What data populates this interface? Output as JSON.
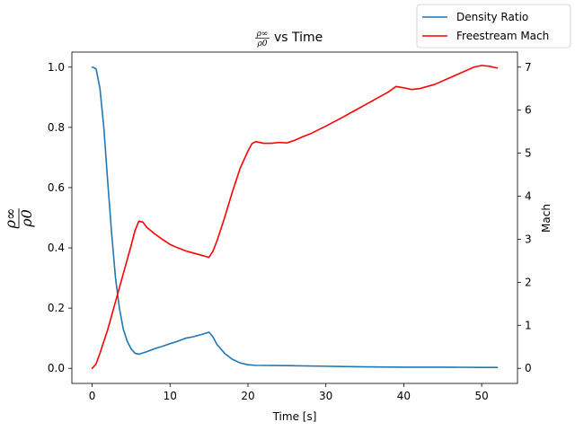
{
  "chart_data": {
    "type": "line",
    "title": "vs Time",
    "xlabel": "Time [s]",
    "ylabel_left": "",
    "ylabel_right": "Mach",
    "xlim": [
      -2.6,
      54.6
    ],
    "ylim_left": [
      -0.05,
      1.05
    ],
    "ylim_right": [
      -0.35,
      7.35
    ],
    "x_ticks": [
      0,
      10,
      20,
      30,
      40,
      50
    ],
    "y_left_ticks": [
      "0.0",
      "0.2",
      "0.4",
      "0.6",
      "0.8",
      "1.0"
    ],
    "y_right_ticks": [
      0,
      1,
      2,
      3,
      4,
      5,
      6,
      7
    ],
    "legend_position": "upper-right-outside",
    "series": [
      {
        "name": "Density Ratio",
        "axis": "left",
        "color": "#1f77b4",
        "x": [
          0,
          0.5,
          1,
          1.5,
          2,
          2.5,
          3,
          3.5,
          4,
          4.5,
          5,
          5.5,
          6,
          7,
          8,
          9,
          10,
          11,
          12,
          13,
          14,
          15,
          15.5,
          16,
          17,
          18,
          19,
          20,
          21,
          25,
          30,
          35,
          40,
          45,
          50,
          52
        ],
        "y": [
          1.0,
          0.995,
          0.93,
          0.8,
          0.62,
          0.45,
          0.3,
          0.2,
          0.13,
          0.09,
          0.065,
          0.05,
          0.047,
          0.055,
          0.065,
          0.073,
          0.082,
          0.09,
          0.1,
          0.105,
          0.112,
          0.12,
          0.105,
          0.08,
          0.05,
          0.03,
          0.018,
          0.012,
          0.01,
          0.009,
          0.007,
          0.005,
          0.004,
          0.004,
          0.003,
          0.003
        ]
      },
      {
        "name": "Freestream Mach",
        "axis": "right",
        "color": "#ff0000",
        "x": [
          0,
          0.5,
          1,
          2,
          3,
          4,
          5,
          5.5,
          6,
          6.5,
          7,
          8,
          9,
          10,
          11,
          12,
          13,
          14,
          15,
          15.5,
          16,
          17,
          18,
          19,
          20,
          20.5,
          21,
          22,
          23,
          24,
          25,
          25.5,
          26,
          27,
          28,
          30,
          32,
          34,
          36,
          37,
          38,
          39,
          40,
          41,
          42,
          44,
          46,
          48,
          49,
          50,
          51,
          52
        ],
        "y": [
          0.0,
          0.1,
          0.35,
          0.9,
          1.55,
          2.2,
          2.85,
          3.2,
          3.42,
          3.4,
          3.28,
          3.13,
          3.0,
          2.88,
          2.8,
          2.73,
          2.68,
          2.63,
          2.58,
          2.72,
          2.95,
          3.5,
          4.1,
          4.65,
          5.05,
          5.22,
          5.27,
          5.23,
          5.23,
          5.25,
          5.24,
          5.27,
          5.3,
          5.38,
          5.45,
          5.63,
          5.82,
          6.02,
          6.22,
          6.32,
          6.42,
          6.55,
          6.52,
          6.48,
          6.5,
          6.6,
          6.76,
          6.92,
          7.0,
          7.04,
          7.02,
          6.98
        ]
      }
    ]
  }
}
